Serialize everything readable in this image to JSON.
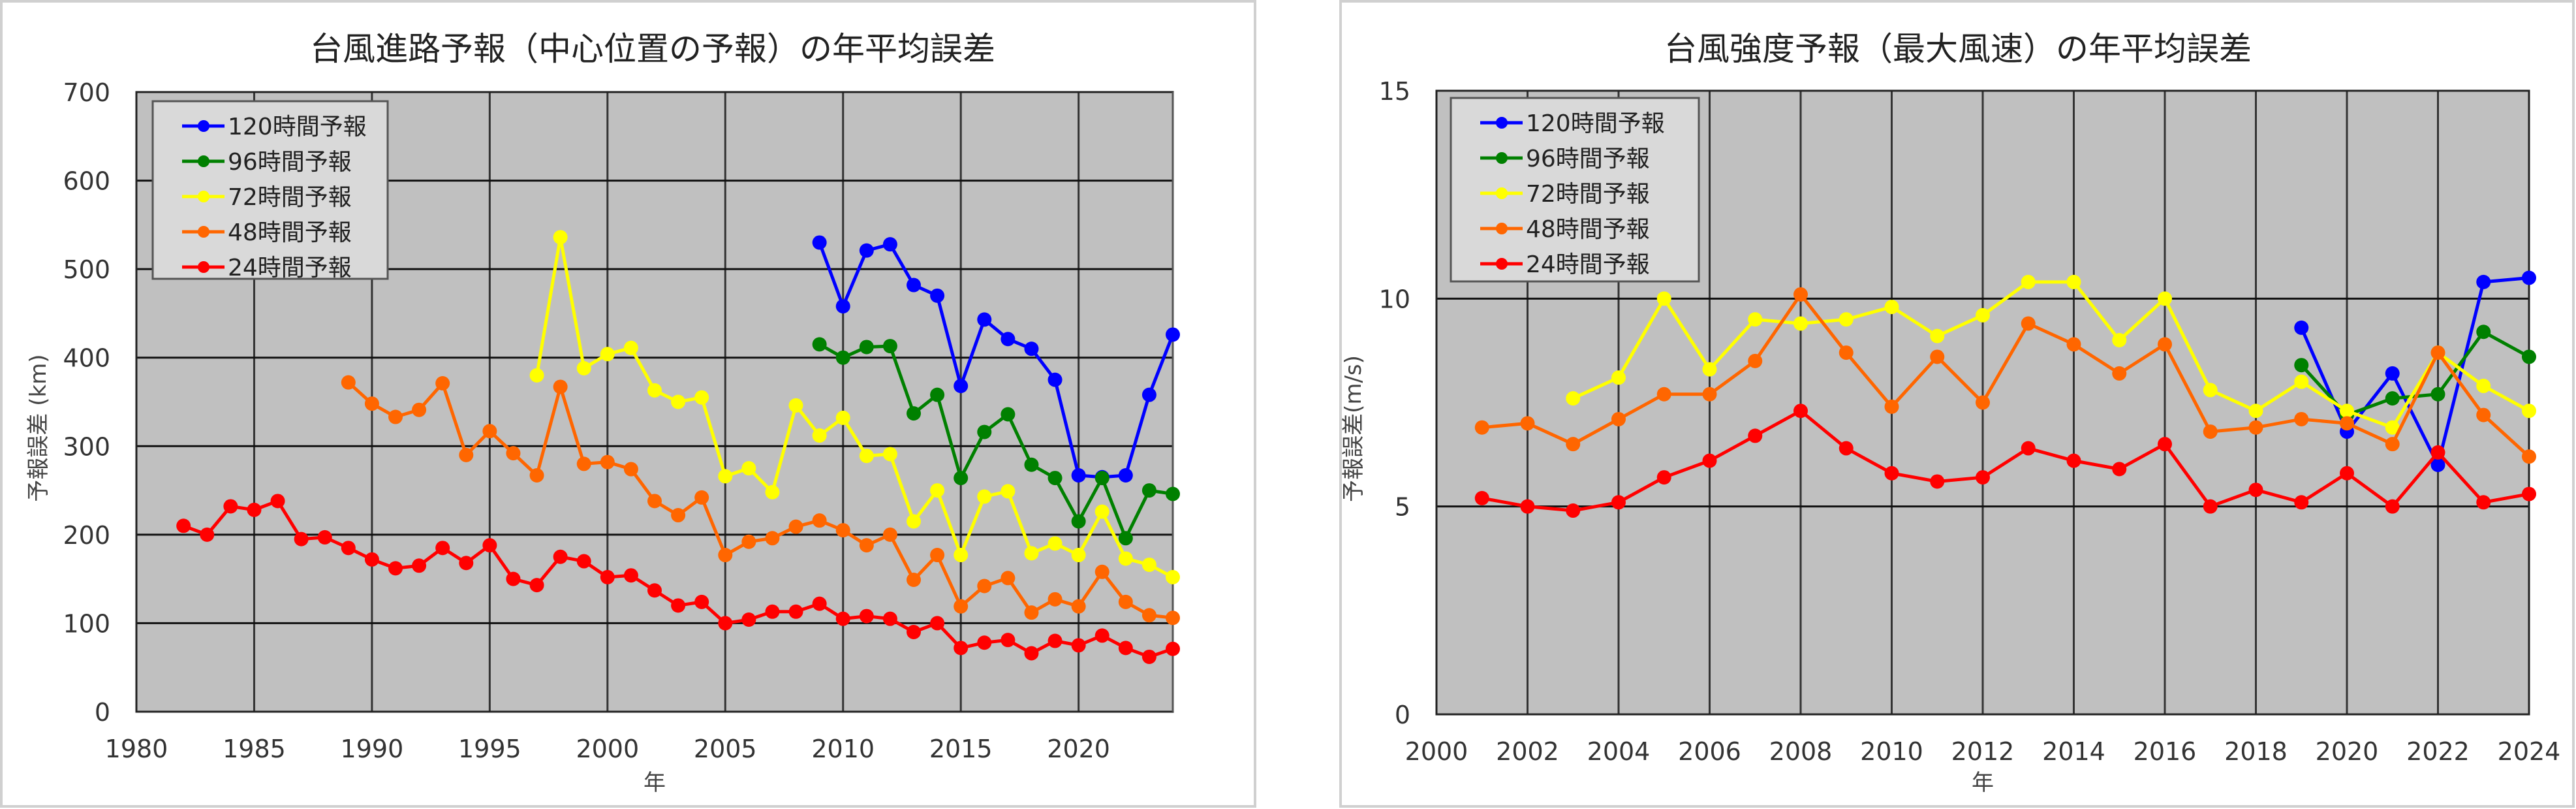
{
  "chart_data": [
    {
      "type": "line",
      "title": "台風進路予報（中心位置の予報）の年平均誤差",
      "xlabel": "年",
      "ylabel": "予報誤差 (km)",
      "xlim": [
        1980,
        2024
      ],
      "ylim": [
        0,
        700
      ],
      "xticks": [
        1980,
        1985,
        1990,
        1995,
        2000,
        2005,
        2010,
        2015,
        2020
      ],
      "yticks": [
        0,
        100,
        200,
        300,
        400,
        500,
        600,
        700
      ],
      "grid": true,
      "legend_position": "top-left",
      "series": [
        {
          "name": "120時間予報",
          "color": "#0000ff",
          "x": [
            2009,
            2010,
            2011,
            2012,
            2013,
            2014,
            2015,
            2016,
            2017,
            2018,
            2019,
            2020,
            2021,
            2022,
            2023,
            2024
          ],
          "values": [
            530,
            458,
            521,
            528,
            482,
            470,
            368,
            443,
            421,
            410,
            375,
            267,
            265,
            267,
            358,
            426
          ]
        },
        {
          "name": "96時間予報",
          "color": "#008000",
          "x": [
            2009,
            2010,
            2011,
            2012,
            2013,
            2014,
            2015,
            2016,
            2017,
            2018,
            2019,
            2020,
            2021,
            2022,
            2023,
            2024
          ],
          "values": [
            415,
            400,
            412,
            413,
            337,
            358,
            264,
            316,
            336,
            279,
            264,
            215,
            264,
            196,
            250,
            246
          ]
        },
        {
          "name": "72時間予報",
          "color": "#ffff00",
          "x": [
            1997,
            1998,
            1999,
            2000,
            2001,
            2002,
            2003,
            2004,
            2005,
            2006,
            2007,
            2008,
            2009,
            2010,
            2011,
            2012,
            2013,
            2014,
            2015,
            2016,
            2017,
            2018,
            2019,
            2020,
            2021,
            2022,
            2023,
            2024
          ],
          "values": [
            380,
            536,
            388,
            404,
            411,
            363,
            350,
            355,
            266,
            275,
            248,
            346,
            312,
            332,
            289,
            291,
            215,
            250,
            177,
            243,
            249,
            179,
            190,
            177,
            226,
            173,
            166,
            152
          ]
        },
        {
          "name": "48時間予報",
          "color": "#ff6600",
          "x": [
            1989,
            1990,
            1991,
            1992,
            1993,
            1994,
            1995,
            1996,
            1997,
            1998,
            1999,
            2000,
            2001,
            2002,
            2003,
            2004,
            2005,
            2006,
            2007,
            2008,
            2009,
            2010,
            2011,
            2012,
            2013,
            2014,
            2015,
            2016,
            2017,
            2018,
            2019,
            2020,
            2021,
            2022,
            2023,
            2024
          ],
          "values": [
            372,
            348,
            333,
            341,
            371,
            290,
            317,
            292,
            267,
            367,
            280,
            282,
            274,
            238,
            222,
            242,
            177,
            192,
            196,
            209,
            216,
            205,
            188,
            200,
            149,
            177,
            119,
            142,
            151,
            112,
            127,
            119,
            158,
            124,
            109,
            106
          ]
        },
        {
          "name": "24時間予報",
          "color": "#ff0000",
          "x": [
            1982,
            1983,
            1984,
            1985,
            1986,
            1987,
            1988,
            1989,
            1990,
            1991,
            1992,
            1993,
            1994,
            1995,
            1996,
            1997,
            1998,
            1999,
            2000,
            2001,
            2002,
            2003,
            2004,
            2005,
            2006,
            2007,
            2008,
            2009,
            2010,
            2011,
            2012,
            2013,
            2014,
            2015,
            2016,
            2017,
            2018,
            2019,
            2020,
            2021,
            2022,
            2023,
            2024
          ],
          "values": [
            210,
            200,
            232,
            228,
            238,
            195,
            197,
            185,
            172,
            162,
            165,
            185,
            168,
            188,
            150,
            143,
            175,
            170,
            152,
            154,
            137,
            120,
            124,
            100,
            104,
            113,
            113,
            122,
            105,
            108,
            105,
            90,
            100,
            72,
            78,
            81,
            66,
            80,
            75,
            86,
            72,
            62,
            71
          ]
        }
      ]
    },
    {
      "type": "line",
      "title": "台風強度予報（最大風速）の年平均誤差",
      "xlabel": "年",
      "ylabel": "予報誤差(m/s)",
      "xlim": [
        2000,
        2024
      ],
      "ylim": [
        0,
        15
      ],
      "xticks": [
        2000,
        2002,
        2004,
        2006,
        2008,
        2010,
        2012,
        2014,
        2016,
        2018,
        2020,
        2022,
        2024
      ],
      "yticks": [
        0,
        5,
        10,
        15
      ],
      "grid": true,
      "legend_position": "top-left",
      "series": [
        {
          "name": "120時間予報",
          "color": "#0000ff",
          "x": [
            2019,
            2020,
            2021,
            2022,
            2023,
            2024
          ],
          "values": [
            9.3,
            6.8,
            8.2,
            6.0,
            10.4,
            10.5
          ]
        },
        {
          "name": "96時間予報",
          "color": "#008000",
          "x": [
            2019,
            2020,
            2021,
            2022,
            2023,
            2024
          ],
          "values": [
            8.4,
            7.2,
            7.6,
            7.7,
            9.2,
            8.6
          ]
        },
        {
          "name": "72時間予報",
          "color": "#ffff00",
          "x": [
            2003,
            2004,
            2005,
            2006,
            2007,
            2008,
            2009,
            2010,
            2011,
            2012,
            2013,
            2014,
            2015,
            2016,
            2017,
            2018,
            2019,
            2020,
            2021,
            2022,
            2023,
            2024
          ],
          "values": [
            7.6,
            8.1,
            10.0,
            8.3,
            9.5,
            9.4,
            9.5,
            9.8,
            9.1,
            9.6,
            10.4,
            10.4,
            9.0,
            10.0,
            7.8,
            7.3,
            8.0,
            7.3,
            6.9,
            8.7,
            7.9,
            7.3
          ]
        },
        {
          "name": "48時間予報",
          "color": "#ff6600",
          "x": [
            2001,
            2002,
            2003,
            2004,
            2005,
            2006,
            2007,
            2008,
            2009,
            2010,
            2011,
            2012,
            2013,
            2014,
            2015,
            2016,
            2017,
            2018,
            2019,
            2020,
            2021,
            2022,
            2023,
            2024
          ],
          "values": [
            6.9,
            7.0,
            6.5,
            7.1,
            7.7,
            7.7,
            8.5,
            10.1,
            8.7,
            7.4,
            8.6,
            7.5,
            9.4,
            8.9,
            8.2,
            8.9,
            6.8,
            6.9,
            7.1,
            7.0,
            6.5,
            8.7,
            7.2,
            6.2
          ]
        },
        {
          "name": "24時間予報",
          "color": "#ff0000",
          "x": [
            2001,
            2002,
            2003,
            2004,
            2005,
            2006,
            2007,
            2008,
            2009,
            2010,
            2011,
            2012,
            2013,
            2014,
            2015,
            2016,
            2017,
            2018,
            2019,
            2020,
            2021,
            2022,
            2023,
            2024
          ],
          "values": [
            5.2,
            5.0,
            4.9,
            5.1,
            5.7,
            6.1,
            6.7,
            7.3,
            6.4,
            5.8,
            5.6,
            5.7,
            6.4,
            6.1,
            5.9,
            6.5,
            5.0,
            5.4,
            5.1,
            5.8,
            5.0,
            6.3,
            5.1,
            5.3
          ]
        }
      ]
    }
  ]
}
